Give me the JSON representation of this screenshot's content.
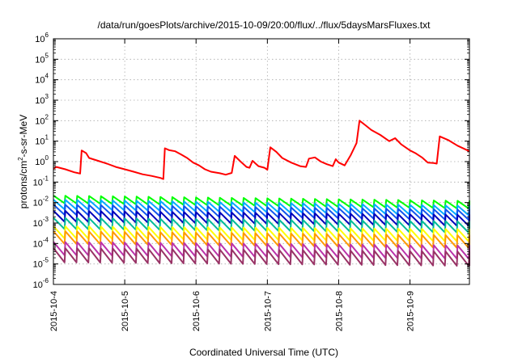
{
  "chart_data": {
    "type": "line",
    "title": "/data/run/goesPlots/archive/2015-10-09/20:00/flux/../flux/5daysMarsFluxes.txt",
    "xlabel": "Coordinated Universal Time (UTC)",
    "ylabel": {
      "base": "protons/cm",
      "sup": "2",
      "rest": "-s-sr-MeV"
    },
    "x_ticks": [
      "2015-10-4",
      "2015-10-5",
      "2015-10-6",
      "2015-10-7",
      "2015-10-8",
      "2015-10-9"
    ],
    "xlim": [
      "2015-10-04 00:00",
      "2015-10-09 20:00"
    ],
    "y_scale": "log",
    "ylim": [
      1e-06,
      1000000.0
    ],
    "y_ticks": [
      {
        "base": "10",
        "exp": "-6"
      },
      {
        "base": "10",
        "exp": "-5"
      },
      {
        "base": "10",
        "exp": "-4"
      },
      {
        "base": "10",
        "exp": "-3"
      },
      {
        "base": "10",
        "exp": "-2"
      },
      {
        "base": "10",
        "exp": "-1"
      },
      {
        "base": "10",
        "exp": "0"
      },
      {
        "base": "10",
        "exp": "1"
      },
      {
        "base": "10",
        "exp": "2"
      },
      {
        "base": "10",
        "exp": "3"
      },
      {
        "base": "10",
        "exp": "4"
      },
      {
        "base": "10",
        "exp": "5"
      },
      {
        "base": "10",
        "exp": "6"
      }
    ],
    "grid": true,
    "series": [
      {
        "color": "#ff0000",
        "points": [
          [
            "2015-10-04 00:00",
            0.45
          ],
          [
            "2015-10-04 01:00",
            0.55
          ],
          [
            "2015-10-04 04:00",
            0.42
          ],
          [
            "2015-10-04 07:00",
            0.3
          ],
          [
            "2015-10-04 08:00",
            0.28
          ],
          [
            "2015-10-04 09:00",
            0.26
          ],
          [
            "2015-10-04 09:30",
            3.5
          ],
          [
            "2015-10-04 11:00",
            2.6
          ],
          [
            "2015-10-04 12:00",
            1.5
          ],
          [
            "2015-10-04 15:00",
            1.1
          ],
          [
            "2015-10-04 18:00",
            0.8
          ],
          [
            "2015-10-04 21:00",
            0.55
          ],
          [
            "2015-10-05 00:00",
            0.42
          ],
          [
            "2015-10-05 03:00",
            0.32
          ],
          [
            "2015-10-05 06:00",
            0.24
          ],
          [
            "2015-10-05 09:00",
            0.2
          ],
          [
            "2015-10-05 12:00",
            0.16
          ],
          [
            "2015-10-05 13:00",
            0.14
          ],
          [
            "2015-10-05 13:30",
            4.5
          ],
          [
            "2015-10-05 15:00",
            3.6
          ],
          [
            "2015-10-05 17:00",
            3.2
          ],
          [
            "2015-10-05 19:00",
            2.2
          ],
          [
            "2015-10-05 21:00",
            1.5
          ],
          [
            "2015-10-05 23:00",
            0.9
          ],
          [
            "2015-10-06 01:00",
            0.65
          ],
          [
            "2015-10-06 03:00",
            0.42
          ],
          [
            "2015-10-06 05:00",
            0.32
          ],
          [
            "2015-10-06 08:00",
            0.27
          ],
          [
            "2015-10-06 10:00",
            0.23
          ],
          [
            "2015-10-06 12:00",
            0.28
          ],
          [
            "2015-10-06 13:00",
            1.9
          ],
          [
            "2015-10-06 15:00",
            1.0
          ],
          [
            "2015-10-06 17:00",
            0.55
          ],
          [
            "2015-10-06 18:00",
            0.5
          ],
          [
            "2015-10-06 19:00",
            1.1
          ],
          [
            "2015-10-06 21:00",
            0.6
          ],
          [
            "2015-10-06 23:00",
            0.5
          ],
          [
            "2015-10-07 00:00",
            0.4
          ],
          [
            "2015-10-07 01:00",
            5.0
          ],
          [
            "2015-10-07 03:00",
            3.0
          ],
          [
            "2015-10-07 05:00",
            1.5
          ],
          [
            "2015-10-07 08:00",
            0.9
          ],
          [
            "2015-10-07 11:00",
            0.6
          ],
          [
            "2015-10-07 13:00",
            0.55
          ],
          [
            "2015-10-07 14:00",
            1.4
          ],
          [
            "2015-10-07 16:00",
            1.6
          ],
          [
            "2015-10-07 18:00",
            1.0
          ],
          [
            "2015-10-07 20:00",
            0.75
          ],
          [
            "2015-10-07 22:00",
            0.6
          ],
          [
            "2015-10-07 23:00",
            1.3
          ],
          [
            "2015-10-08 00:00",
            0.9
          ],
          [
            "2015-10-08 02:00",
            0.65
          ],
          [
            "2015-10-08 04:00",
            2.0
          ],
          [
            "2015-10-08 06:00",
            8.0
          ],
          [
            "2015-10-08 07:00",
            100
          ],
          [
            "2015-10-08 09:00",
            60
          ],
          [
            "2015-10-08 11:00",
            35
          ],
          [
            "2015-10-08 14:00",
            20
          ],
          [
            "2015-10-08 17:00",
            10
          ],
          [
            "2015-10-08 19:00",
            14
          ],
          [
            "2015-10-08 21:00",
            7
          ],
          [
            "2015-10-09 00:00",
            3.5
          ],
          [
            "2015-10-09 02:00",
            2.5
          ],
          [
            "2015-10-09 04:00",
            1.6
          ],
          [
            "2015-10-09 06:00",
            0.9
          ],
          [
            "2015-10-09 08:00",
            0.85
          ],
          [
            "2015-10-09 09:00",
            0.8
          ],
          [
            "2015-10-09 10:00",
            17
          ],
          [
            "2015-10-09 13:00",
            11
          ],
          [
            "2015-10-09 16:00",
            6
          ],
          [
            "2015-10-09 20:00",
            3.2
          ]
        ]
      },
      {
        "color": "#00ff00",
        "start": 0.022,
        "end": 0.012,
        "ratio": 2.4,
        "period_hours": 4
      },
      {
        "color": "#00aaff",
        "start": 0.014,
        "end": 0.007,
        "ratio": 3.0,
        "period_hours": 4
      },
      {
        "color": "#1155ee",
        "start": 0.008,
        "end": 0.0045,
        "ratio": 3.2,
        "period_hours": 4
      },
      {
        "color": "#0000bb",
        "start": 0.004,
        "end": 0.0025,
        "ratio": 3.5,
        "period_hours": 4
      },
      {
        "color": "#00bb99",
        "start": 0.0018,
        "end": 0.0012,
        "ratio": 3.6,
        "period_hours": 4
      },
      {
        "color": "#ffff00",
        "start": 0.0007,
        "end": 0.0005,
        "ratio": 4.0,
        "period_hours": 4
      },
      {
        "color": "#ff9900",
        "start": 0.0004,
        "end": 0.00025,
        "ratio": 4.2,
        "period_hours": 4
      },
      {
        "color": "#bb33aa",
        "start": 0.00012,
        "end": 8e-05,
        "ratio": 4.5,
        "period_hours": 4
      },
      {
        "color": "#993366",
        "start": 6e-05,
        "end": 4e-05,
        "ratio": 5.0,
        "period_hours": 4
      }
    ]
  }
}
